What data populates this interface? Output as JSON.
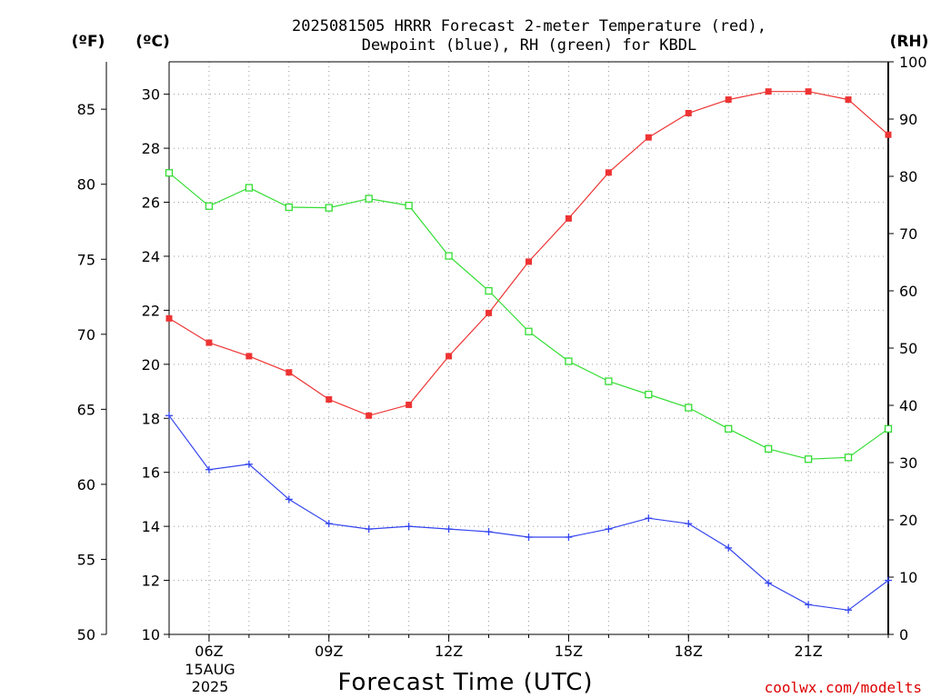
{
  "page": {
    "title_line1": "2025081505 HRRR Forecast 2-meter Temperature (red),",
    "title_line2": "Dewpoint (blue), RH (green) for KBDL",
    "unit_f": "(ºF)",
    "unit_c": "(ºC)",
    "unit_rh": "(RH)",
    "xlabel": "Forecast Time (UTC)",
    "credit": "coolwx.com/modelts",
    "date_line1": "15AUG",
    "date_line2": "2025"
  },
  "chart_data": {
    "type": "line",
    "x": [
      "05Z",
      "06Z",
      "07Z",
      "08Z",
      "09Z",
      "10Z",
      "11Z",
      "12Z",
      "13Z",
      "14Z",
      "15Z",
      "16Z",
      "17Z",
      "18Z",
      "19Z",
      "20Z",
      "21Z",
      "22Z",
      "23Z"
    ],
    "x_tick_labels": [
      "06Z",
      "09Z",
      "12Z",
      "15Z",
      "18Z",
      "21Z"
    ],
    "x_tick_hours": [
      6,
      9,
      12,
      15,
      18,
      21
    ],
    "x_range_hours": [
      5,
      23
    ],
    "ylim_c": [
      10,
      31.2
    ],
    "ylim_rh": [
      0,
      100
    ],
    "y_ticks_c": [
      10,
      12,
      14,
      16,
      18,
      20,
      22,
      24,
      26,
      28,
      30
    ],
    "y_ticks_f": [
      50,
      55,
      60,
      65,
      70,
      75,
      80,
      85
    ],
    "y_ticks_rh": [
      0,
      10,
      20,
      30,
      40,
      50,
      60,
      70,
      80,
      90,
      100
    ],
    "grid": true,
    "series": [
      {
        "name": "Temperature",
        "axis": "c",
        "color": "#ee3333",
        "marker": "filled-square",
        "values": [
          21.7,
          20.8,
          20.3,
          19.7,
          18.7,
          18.1,
          18.5,
          20.3,
          21.9,
          23.8,
          25.4,
          27.1,
          28.4,
          29.3,
          29.8,
          30.1,
          30.1,
          29.8,
          28.5
        ]
      },
      {
        "name": "Dewpoint",
        "axis": "c",
        "color": "#3344ee",
        "marker": "plus",
        "values": [
          18.1,
          16.1,
          16.3,
          15.0,
          14.1,
          13.9,
          14.0,
          13.9,
          13.8,
          13.6,
          13.6,
          13.9,
          14.3,
          14.1,
          13.2,
          11.9,
          11.1,
          10.9,
          12.0
        ]
      },
      {
        "name": "RH",
        "axis": "rh",
        "color": "#33dd33",
        "marker": "open-square",
        "values": [
          80.6,
          74.8,
          78.0,
          74.6,
          74.5,
          76.1,
          74.9,
          66.1,
          60.0,
          52.9,
          47.7,
          44.2,
          41.9,
          39.6,
          35.9,
          32.4,
          30.6,
          30.9,
          35.9
        ]
      }
    ]
  }
}
